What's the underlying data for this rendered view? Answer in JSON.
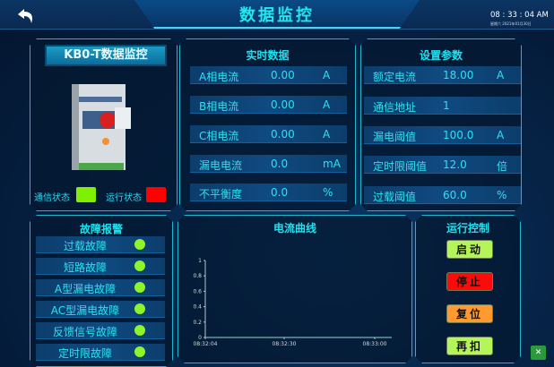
{
  "header": {
    "title": "数据监控",
    "time": "08 : 33 : 04 AM",
    "date": "星期六  2021年01月30日",
    "back_icon": "back-arrow-icon"
  },
  "device": {
    "title": "KB0-T数据监控",
    "comm_label": "通信状态",
    "comm_color": "#7ff000",
    "run_label": "运行状态",
    "run_color": "#ff0000"
  },
  "realtime": {
    "title": "实时数据",
    "rows": [
      {
        "label": "A相电流",
        "value": "0.00",
        "unit": "A"
      },
      {
        "label": "B相电流",
        "value": "0.00",
        "unit": "A"
      },
      {
        "label": "C相电流",
        "value": "0.00",
        "unit": "A"
      },
      {
        "label": "漏电电流",
        "value": "0.0",
        "unit": "mA"
      },
      {
        "label": "不平衡度",
        "value": "0.0",
        "unit": "%"
      }
    ]
  },
  "settings": {
    "title": "设置参数",
    "rows": [
      {
        "label": "额定电流",
        "value": "18.00",
        "unit": "A"
      },
      {
        "label": "通信地址",
        "value": "1",
        "unit": ""
      },
      {
        "label": "漏电阈值",
        "value": "100.0",
        "unit": "A"
      },
      {
        "label": "定时限阈值",
        "value": "12.0",
        "unit": "倍"
      },
      {
        "label": "过载阈值",
        "value": "60.0",
        "unit": "%"
      }
    ]
  },
  "faults": {
    "title": "故障报警",
    "items": [
      "过载故障",
      "短路故障",
      "A型漏电故障",
      "AC型漏电故障",
      "反馈信号故障",
      "定时限故障"
    ],
    "indicator_color": "#8ef52a"
  },
  "chart": {
    "title": "电流曲线"
  },
  "chart_data": {
    "type": "line",
    "series": [],
    "x_ticks": [
      "08:32:04",
      "08:32:30",
      "08:33:00"
    ],
    "y_ticks": [
      "0",
      "0.2",
      "0.4",
      "0.6",
      "0.8",
      "1"
    ],
    "ylim": [
      0,
      1
    ],
    "grid": false
  },
  "control": {
    "title": "运行控制",
    "buttons": [
      {
        "label": "启动",
        "color": "#b4f55a"
      },
      {
        "label": "停止",
        "color": "#ff0a0a"
      },
      {
        "label": "复位",
        "color": "#ff9a30"
      },
      {
        "label": "再扣",
        "color": "#b4f55a"
      }
    ]
  }
}
